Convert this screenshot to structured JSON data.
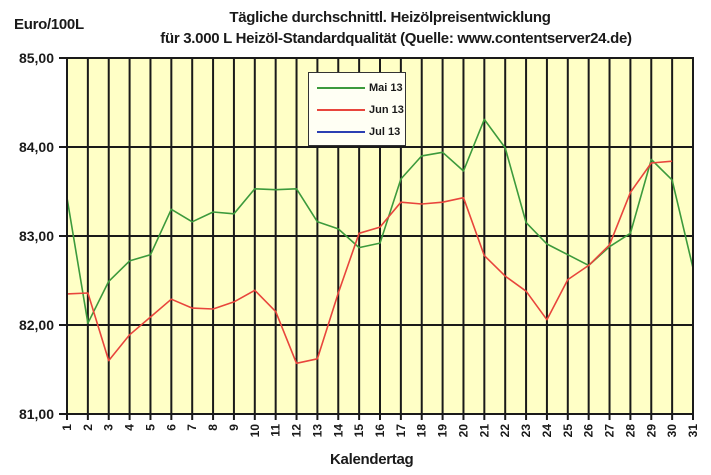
{
  "header": {
    "y_unit": "Euro/100L",
    "title_line1": "Tägliche durchschnittl. Heizölpreisentwicklung",
    "title_line2": "für 3.000 L Heizöl-Standardqualität (Quelle: www.contentserver24.de)"
  },
  "axis": {
    "xlabel": "Kalendertag",
    "yticks": [
      "85,00",
      "84,00",
      "83,00",
      "82,00",
      "81,00"
    ]
  },
  "legend": {
    "items": [
      {
        "label": "Mai 13",
        "color": "#3c9a3c"
      },
      {
        "label": "Jun 13",
        "color": "#e8453c"
      },
      {
        "label": "Jul 13",
        "color": "#2b3fb3"
      }
    ]
  },
  "colors": {
    "plot_bg": "#ffffc6",
    "grid": "#1a1a1a",
    "mai": "#3c9a3c",
    "jun": "#e8453c",
    "jul": "#2b3fb3"
  },
  "chart_data": {
    "type": "line",
    "title": "Tägliche durchschnittl. Heizölpreisentwicklung für 3.000 L Heizöl-Standardqualität (Quelle: www.contentserver24.de)",
    "xlabel": "Kalendertag",
    "ylabel": "Euro/100L",
    "ylim": [
      81,
      85
    ],
    "grid": true,
    "legend_position": "top-center-inside",
    "categories": [
      1,
      2,
      3,
      4,
      5,
      6,
      7,
      8,
      9,
      10,
      11,
      12,
      13,
      14,
      15,
      16,
      17,
      18,
      19,
      20,
      21,
      22,
      23,
      24,
      25,
      26,
      27,
      28,
      29,
      30,
      31
    ],
    "series": [
      {
        "name": "Mai 13",
        "values": [
          83.43,
          82.02,
          82.49,
          82.72,
          82.79,
          83.3,
          83.16,
          83.27,
          83.25,
          83.53,
          83.52,
          83.53,
          83.16,
          83.08,
          82.87,
          82.92,
          83.64,
          83.9,
          83.94,
          83.73,
          84.31,
          83.99,
          83.15,
          82.91,
          82.79,
          82.67,
          82.88,
          83.03,
          83.86,
          83.63,
          82.64
        ]
      },
      {
        "name": "Jun 13",
        "values": [
          82.35,
          82.36,
          81.6,
          81.89,
          82.09,
          82.29,
          82.19,
          82.18,
          82.26,
          82.39,
          82.15,
          81.57,
          81.62,
          82.36,
          83.03,
          83.1,
          83.38,
          83.36,
          83.38,
          83.43,
          82.78,
          82.55,
          82.38,
          82.06,
          82.51,
          82.67,
          82.9,
          83.49,
          83.82,
          83.84,
          null
        ]
      },
      {
        "name": "Jul 13",
        "values": []
      }
    ]
  }
}
